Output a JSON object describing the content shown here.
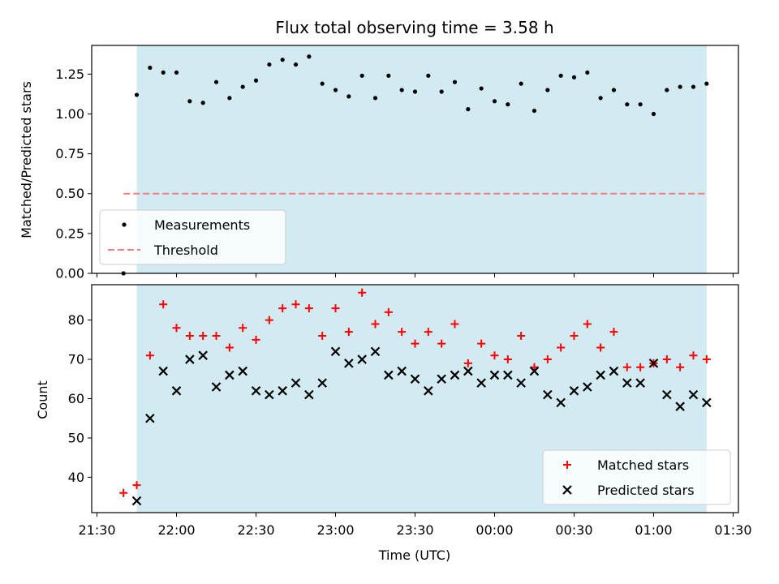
{
  "chart_data": [
    {
      "type": "scatter",
      "title": "Flux total observing time = 3.58 h",
      "xlabel": "",
      "ylabel": "Matched/Predicted stars",
      "ylim": [
        0,
        1.43
      ],
      "yticks": [
        "0.00",
        "0.25",
        "0.50",
        "0.75",
        "1.00",
        "1.25"
      ],
      "xlim": [
        "21:28",
        "01:32"
      ],
      "x_tick_labels_visible": false,
      "shaded_span": [
        "21:45",
        "01:20"
      ],
      "shaded_color": "#add8e6",
      "legend_position": "lower-left",
      "series": [
        {
          "name": "Measurements",
          "color": "#000000",
          "marker": "dot",
          "points": [
            [
              "21:40",
              0.0
            ],
            [
              "21:45",
              1.12
            ],
            [
              "21:50",
              1.29
            ],
            [
              "21:55",
              1.26
            ],
            [
              "22:00",
              1.26
            ],
            [
              "22:05",
              1.08
            ],
            [
              "22:10",
              1.07
            ],
            [
              "22:15",
              1.2
            ],
            [
              "22:20",
              1.1
            ],
            [
              "22:25",
              1.17
            ],
            [
              "22:30",
              1.21
            ],
            [
              "22:35",
              1.31
            ],
            [
              "22:40",
              1.34
            ],
            [
              "22:45",
              1.31
            ],
            [
              "22:50",
              1.36
            ],
            [
              "22:55",
              1.19
            ],
            [
              "23:00",
              1.15
            ],
            [
              "23:05",
              1.11
            ],
            [
              "23:10",
              1.24
            ],
            [
              "23:15",
              1.1
            ],
            [
              "23:20",
              1.24
            ],
            [
              "23:25",
              1.15
            ],
            [
              "23:30",
              1.14
            ],
            [
              "23:35",
              1.24
            ],
            [
              "23:40",
              1.14
            ],
            [
              "23:45",
              1.2
            ],
            [
              "23:50",
              1.03
            ],
            [
              "23:55",
              1.16
            ],
            [
              "00:00",
              1.08
            ],
            [
              "00:05",
              1.06
            ],
            [
              "00:10",
              1.19
            ],
            [
              "00:15",
              1.02
            ],
            [
              "00:20",
              1.15
            ],
            [
              "00:25",
              1.24
            ],
            [
              "00:30",
              1.23
            ],
            [
              "00:35",
              1.26
            ],
            [
              "00:40",
              1.1
            ],
            [
              "00:45",
              1.15
            ],
            [
              "00:50",
              1.06
            ],
            [
              "00:55",
              1.06
            ],
            [
              "01:00",
              1.0
            ],
            [
              "01:05",
              1.15
            ],
            [
              "01:10",
              1.17
            ],
            [
              "01:15",
              1.17
            ],
            [
              "01:20",
              1.19
            ]
          ]
        },
        {
          "name": "Threshold",
          "color": "#f08080",
          "style": "dashed",
          "points": [
            [
              "21:40",
              0.5
            ],
            [
              "01:20",
              0.5
            ]
          ]
        }
      ]
    },
    {
      "type": "scatter",
      "title": "",
      "xlabel": "Time (UTC)",
      "ylabel": "Count",
      "ylim": [
        31,
        89
      ],
      "yticks": [
        "40",
        "50",
        "60",
        "70",
        "80"
      ],
      "xlim": [
        "21:28",
        "01:32"
      ],
      "xticks": [
        "21:30",
        "22:00",
        "22:30",
        "23:00",
        "23:30",
        "00:00",
        "00:30",
        "01:00",
        "01:30"
      ],
      "shaded_span": [
        "21:45",
        "01:20"
      ],
      "shaded_color": "#add8e6",
      "legend_position": "lower-right",
      "series": [
        {
          "name": "Matched stars",
          "color": "#ff0000",
          "marker": "plus",
          "points": [
            [
              "21:40",
              36
            ],
            [
              "21:45",
              38
            ],
            [
              "21:50",
              71
            ],
            [
              "21:55",
              84
            ],
            [
              "22:00",
              78
            ],
            [
              "22:05",
              76
            ],
            [
              "22:10",
              76
            ],
            [
              "22:15",
              76
            ],
            [
              "22:20",
              73
            ],
            [
              "22:25",
              78
            ],
            [
              "22:30",
              75
            ],
            [
              "22:35",
              80
            ],
            [
              "22:40",
              83
            ],
            [
              "22:45",
              84
            ],
            [
              "22:50",
              83
            ],
            [
              "22:55",
              76
            ],
            [
              "23:00",
              83
            ],
            [
              "23:05",
              77
            ],
            [
              "23:10",
              87
            ],
            [
              "23:15",
              79
            ],
            [
              "23:20",
              82
            ],
            [
              "23:25",
              77
            ],
            [
              "23:30",
              74
            ],
            [
              "23:35",
              77
            ],
            [
              "23:40",
              74
            ],
            [
              "23:45",
              79
            ],
            [
              "23:50",
              69
            ],
            [
              "23:55",
              74
            ],
            [
              "00:00",
              71
            ],
            [
              "00:05",
              70
            ],
            [
              "00:10",
              76
            ],
            [
              "00:15",
              68
            ],
            [
              "00:20",
              70
            ],
            [
              "00:25",
              73
            ],
            [
              "00:30",
              76
            ],
            [
              "00:35",
              79
            ],
            [
              "00:40",
              73
            ],
            [
              "00:45",
              77
            ],
            [
              "00:50",
              68
            ],
            [
              "00:55",
              68
            ],
            [
              "01:00",
              69
            ],
            [
              "01:05",
              70
            ],
            [
              "01:10",
              68
            ],
            [
              "01:15",
              71
            ],
            [
              "01:20",
              70
            ]
          ]
        },
        {
          "name": "Predicted stars",
          "color": "#000000",
          "marker": "x",
          "points": [
            [
              "21:45",
              34
            ],
            [
              "21:50",
              55
            ],
            [
              "21:55",
              67
            ],
            [
              "22:00",
              62
            ],
            [
              "22:05",
              70
            ],
            [
              "22:10",
              71
            ],
            [
              "22:15",
              63
            ],
            [
              "22:20",
              66
            ],
            [
              "22:25",
              67
            ],
            [
              "22:30",
              62
            ],
            [
              "22:35",
              61
            ],
            [
              "22:40",
              62
            ],
            [
              "22:45",
              64
            ],
            [
              "22:50",
              61
            ],
            [
              "22:55",
              64
            ],
            [
              "23:00",
              72
            ],
            [
              "23:05",
              69
            ],
            [
              "23:10",
              70
            ],
            [
              "23:15",
              72
            ],
            [
              "23:20",
              66
            ],
            [
              "23:25",
              67
            ],
            [
              "23:30",
              65
            ],
            [
              "23:35",
              62
            ],
            [
              "23:40",
              65
            ],
            [
              "23:45",
              66
            ],
            [
              "23:50",
              67
            ],
            [
              "23:55",
              64
            ],
            [
              "00:00",
              66
            ],
            [
              "00:05",
              66
            ],
            [
              "00:10",
              64
            ],
            [
              "00:15",
              67
            ],
            [
              "00:20",
              61
            ],
            [
              "00:25",
              59
            ],
            [
              "00:30",
              62
            ],
            [
              "00:35",
              63
            ],
            [
              "00:40",
              66
            ],
            [
              "00:45",
              67
            ],
            [
              "00:50",
              64
            ],
            [
              "00:55",
              64
            ],
            [
              "01:00",
              69
            ],
            [
              "01:05",
              61
            ],
            [
              "01:10",
              58
            ],
            [
              "01:15",
              61
            ],
            [
              "01:20",
              59
            ]
          ]
        }
      ]
    }
  ]
}
